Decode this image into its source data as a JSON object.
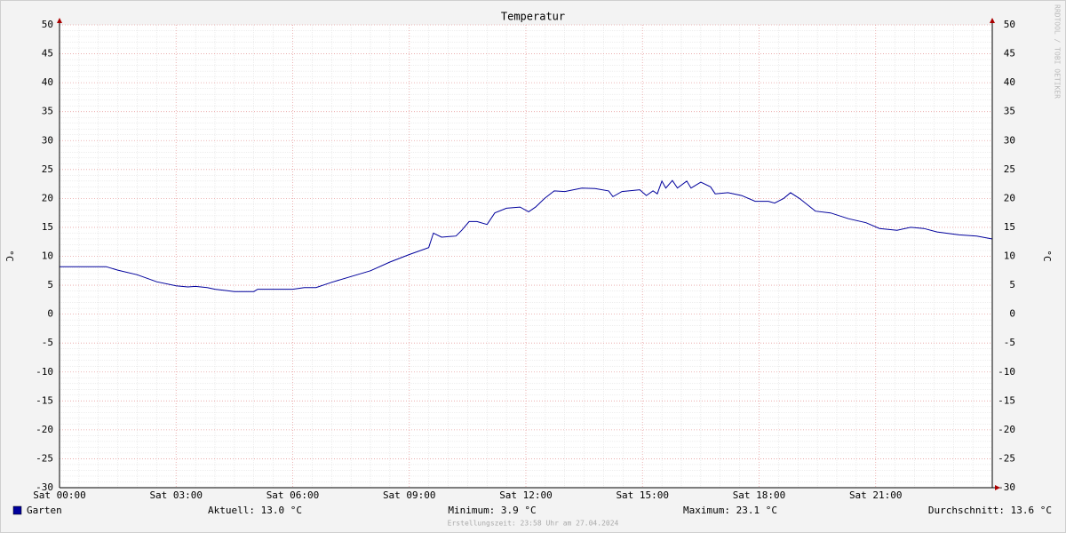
{
  "chart_data": {
    "type": "line",
    "title": "Temperatur",
    "y_label": "°C",
    "x": [
      0,
      1.2,
      1.5,
      2.0,
      2.5,
      3.0,
      3.3,
      3.5,
      3.8,
      4.0,
      4.5,
      5.0,
      5.1,
      6.0,
      6.3,
      6.6,
      7.0,
      7.5,
      8.0,
      8.5,
      9.0,
      9.5,
      9.62,
      9.83,
      10.2,
      10.35,
      10.54,
      10.74,
      11.0,
      11.2,
      11.5,
      11.85,
      12.07,
      12.25,
      12.48,
      12.73,
      13.0,
      13.44,
      13.78,
      14.13,
      14.24,
      14.47,
      14.93,
      15.1,
      15.27,
      15.38,
      15.5,
      15.6,
      15.77,
      15.9,
      16.14,
      16.25,
      16.5,
      16.75,
      16.87,
      17.2,
      17.55,
      17.9,
      18.24,
      18.4,
      18.63,
      18.81,
      19.04,
      19.45,
      19.84,
      20.3,
      20.75,
      21.1,
      21.55,
      21.9,
      22.24,
      22.58,
      23.15,
      23.6,
      24
    ],
    "series": [
      {
        "name": "Garten",
        "color": "#00009c",
        "values": [
          8.2,
          8.2,
          7.6,
          6.8,
          5.6,
          4.9,
          4.7,
          4.8,
          4.6,
          4.3,
          3.9,
          3.9,
          4.3,
          4.3,
          4.6,
          4.6,
          5.5,
          6.5,
          7.5,
          9.0,
          10.3,
          11.5,
          14.0,
          13.3,
          13.5,
          14.5,
          16.0,
          16.0,
          15.5,
          17.5,
          18.3,
          18.5,
          17.7,
          18.5,
          20.0,
          21.3,
          21.2,
          21.8,
          21.7,
          21.3,
          20.3,
          21.2,
          21.5,
          20.5,
          21.3,
          20.8,
          23.0,
          21.8,
          23.1,
          21.8,
          23.0,
          21.8,
          22.8,
          22.0,
          20.8,
          21.0,
          20.5,
          19.5,
          19.5,
          19.2,
          20.0,
          21.0,
          20.0,
          17.8,
          17.5,
          16.5,
          15.8,
          14.8,
          14.5,
          15.0,
          14.8,
          14.2,
          13.7,
          13.5,
          13.0
        ]
      }
    ],
    "xlim": [
      0,
      24
    ],
    "xticks": [
      {
        "value": 0,
        "label": "Sat 00:00"
      },
      {
        "value": 3,
        "label": "Sat 03:00"
      },
      {
        "value": 6,
        "label": "Sat 06:00"
      },
      {
        "value": 9,
        "label": "Sat 09:00"
      },
      {
        "value": 12,
        "label": "Sat 12:00"
      },
      {
        "value": 15,
        "label": "Sat 15:00"
      },
      {
        "value": 18,
        "label": "Sat 18:00"
      },
      {
        "value": 21,
        "label": "Sat 21:00"
      }
    ],
    "ylim": [
      -30,
      50
    ],
    "yticks": [
      -30,
      -25,
      -20,
      -15,
      -10,
      -5,
      0,
      5,
      10,
      15,
      20,
      25,
      30,
      35,
      40,
      45,
      50
    ],
    "grid": true,
    "stats": [
      "Aktuell: 13.0 °C",
      "Minimum: 3.9 °C",
      "Maximum: 23.1 °C",
      "Durchschnitt: 13.6 °C"
    ],
    "footer": "Erstellungszeit: 23:58 Uhr am 27.04.2024",
    "watermark": "RRDTOOL / TOBI OETIKER"
  }
}
